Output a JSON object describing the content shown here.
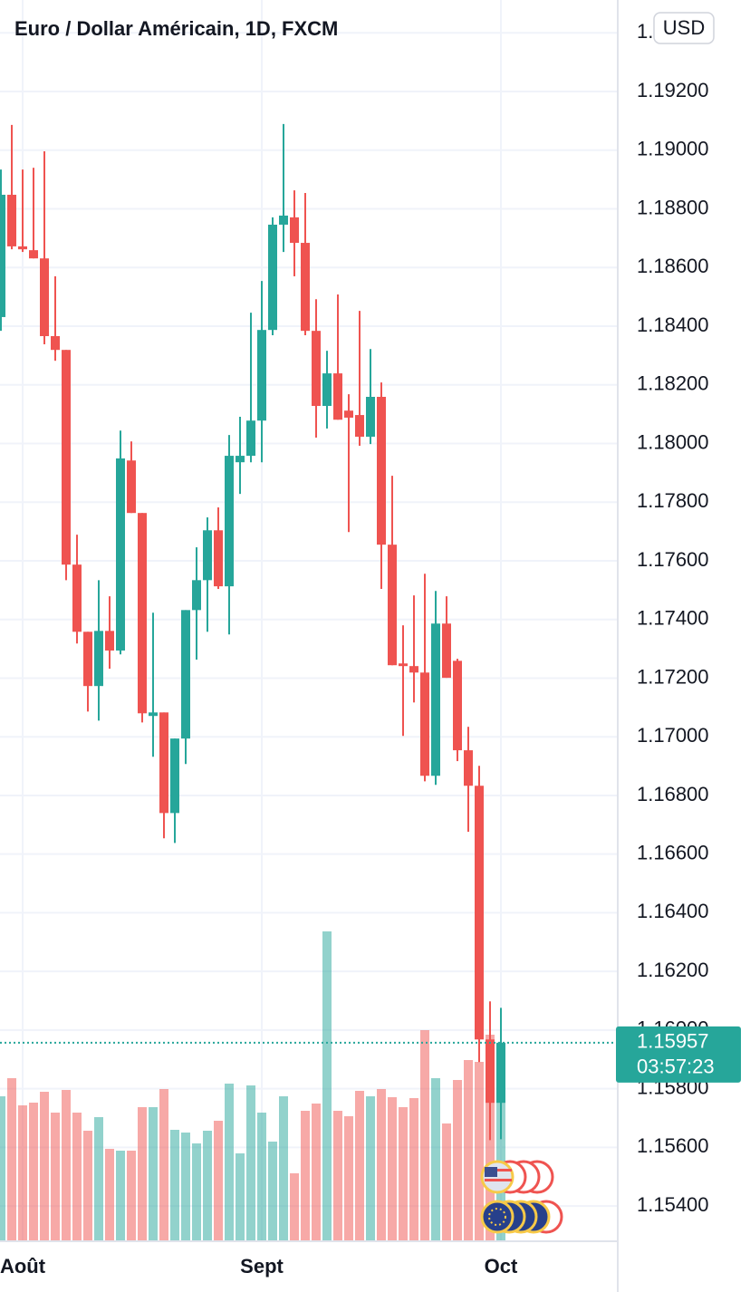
{
  "chart_data": {
    "type": "candlestick",
    "title": "Euro / Dollar Américain, 1D, FXCM",
    "currency": "USD",
    "categories": [
      null,
      null,
      "Août",
      null,
      null,
      null,
      null,
      null,
      null,
      null,
      null,
      null,
      null,
      null,
      null,
      null,
      null,
      null,
      null,
      null,
      null,
      null,
      null,
      null,
      "Sept",
      null,
      null,
      null,
      null,
      null,
      null,
      null,
      null,
      null,
      null,
      null,
      null,
      null,
      null,
      null,
      null,
      null,
      null,
      null,
      null,
      null,
      "Oct"
    ],
    "open": [
      1.18431,
      1.18848,
      1.18672,
      1.18659,
      1.18631,
      1.18366,
      1.18319,
      1.17587,
      1.17358,
      1.17173,
      1.17361,
      1.17294,
      1.17942,
      1.17763,
      1.17071,
      1.17083,
      1.1674,
      1.16994,
      1.17432,
      1.17534,
      1.17704,
      1.17513,
      1.17936,
      1.17958,
      1.18078,
      1.18387,
      1.18746,
      1.18771,
      1.18684,
      1.18384,
      1.18128,
      1.18239,
      1.18112,
      1.18097,
      1.18023,
      1.18159,
      1.17655,
      1.1725,
      1.17241,
      1.17219,
      1.16867,
      1.17386,
      1.17259,
      1.16954,
      1.16833,
      1.15968,
      1.15752
    ],
    "high": [
      1.18934,
      1.19086,
      1.18934,
      1.1894,
      1.18996,
      1.1857,
      1.18319,
      1.17689,
      1.17358,
      1.17534,
      1.17479,
      1.18044,
      1.18007,
      1.17763,
      1.17423,
      1.17083,
      1.16994,
      1.17432,
      1.17646,
      1.17748,
      1.17782,
      1.18029,
      1.18091,
      1.18446,
      1.18554,
      1.18771,
      1.19089,
      1.18863,
      1.18854,
      1.18492,
      1.18316,
      1.18508,
      1.18168,
      1.18452,
      1.18322,
      1.18208,
      1.1789,
      1.1738,
      1.17482,
      1.17556,
      1.17497,
      1.17479,
      1.17266,
      1.17034,
      1.16901,
      1.16098,
      1.16076
    ],
    "low": [
      1.18384,
      1.18662,
      1.18653,
      1.18631,
      1.18338,
      1.18282,
      1.17534,
      1.17318,
      1.17086,
      1.17055,
      1.17232,
      1.17281,
      1.17763,
      1.17049,
      1.16932,
      1.16654,
      1.16638,
      1.16907,
      1.17263,
      1.17358,
      1.17504,
      1.17349,
      1.17828,
      1.17936,
      1.17936,
      1.18369,
      1.18653,
      1.1857,
      1.18369,
      1.1802,
      1.18051,
      1.18081,
      1.17698,
      1.17992,
      1.17998,
      1.17504,
      1.17244,
      1.17003,
      1.17117,
      1.16848,
      1.16836,
      1.17201,
      1.16917,
      1.16676,
      1.15891,
      1.15625,
      1.15628
    ],
    "close": [
      1.18848,
      1.18672,
      1.18662,
      1.18631,
      1.18366,
      1.18319,
      1.17587,
      1.17358,
      1.17173,
      1.17361,
      1.17294,
      1.17949,
      1.17763,
      1.1708,
      1.17083,
      1.1674,
      1.16994,
      1.17432,
      1.17534,
      1.17704,
      1.17513,
      1.17958,
      1.17958,
      1.18078,
      1.18387,
      1.18746,
      1.18777,
      1.18684,
      1.18384,
      1.18128,
      1.18239,
      1.18081,
      1.18088,
      1.18023,
      1.18159,
      1.17655,
      1.17244,
      1.17241,
      1.17219,
      1.16867,
      1.17386,
      1.17201,
      1.16954,
      1.16833,
      1.15968,
      1.15752,
      1.15957
    ],
    "volume": [
      160,
      180,
      150,
      153,
      165,
      142,
      167,
      142,
      122,
      137,
      102,
      100,
      100,
      148,
      148,
      168,
      123,
      120,
      108,
      122,
      133,
      174,
      97,
      172,
      142,
      110,
      160,
      75,
      144,
      152,
      342,
      144,
      138,
      166,
      160,
      168,
      159,
      148,
      158,
      233,
      180,
      130,
      178,
      200,
      198,
      228,
      155
    ],
    "up_color": "#26a69a",
    "down_color": "#ef5350",
    "ylim": [
      1.1528,
      1.19512
    ],
    "yticks": [
      {
        "value": 1.154,
        "label": "1.15400"
      },
      {
        "value": 1.156,
        "label": "1.15600"
      },
      {
        "value": 1.158,
        "label": "1.15800"
      },
      {
        "value": 1.16,
        "label": "1.16000"
      },
      {
        "value": 1.162,
        "label": "1.16200"
      },
      {
        "value": 1.164,
        "label": "1.16400"
      },
      {
        "value": 1.166,
        "label": "1.16600"
      },
      {
        "value": 1.168,
        "label": "1.16800"
      },
      {
        "value": 1.17,
        "label": "1.17000"
      },
      {
        "value": 1.172,
        "label": "1.17200"
      },
      {
        "value": 1.174,
        "label": "1.17400"
      },
      {
        "value": 1.176,
        "label": "1.17600"
      },
      {
        "value": 1.178,
        "label": "1.17800"
      },
      {
        "value": 1.18,
        "label": "1.18000"
      },
      {
        "value": 1.182,
        "label": "1.18200"
      },
      {
        "value": 1.184,
        "label": "1.18400"
      },
      {
        "value": 1.186,
        "label": "1.18600"
      },
      {
        "value": 1.188,
        "label": "1.18800"
      },
      {
        "value": 1.19,
        "label": "1.19000"
      },
      {
        "value": 1.192,
        "label": "1.19200"
      },
      {
        "value": 1.194,
        "label": "1.19400"
      }
    ],
    "grid": true,
    "price_label": "1.15957",
    "countdown": "03:57:23"
  }
}
